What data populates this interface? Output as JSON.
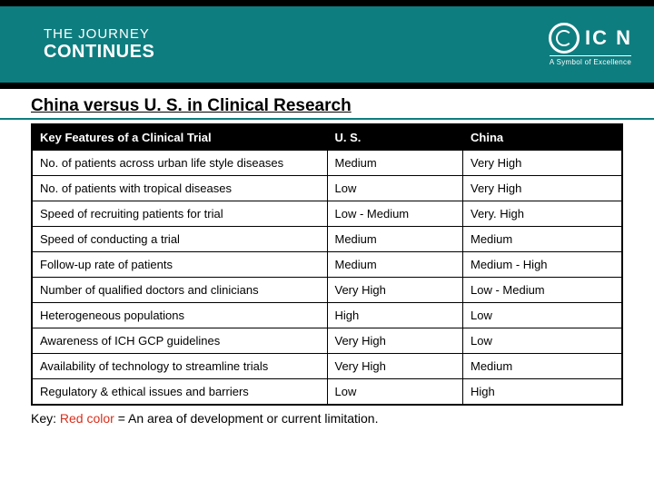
{
  "header": {
    "journey_top": "THE JOURNEY",
    "journey_bottom": "CONTINUES",
    "logo_text": "IC   N",
    "logo_sub": "A Symbol of Excellence"
  },
  "title": "China versus U. S. in Clinical Research",
  "table": {
    "columns": [
      "Key Features of a Clinical Trial",
      "U. S.",
      "China"
    ],
    "rows": [
      {
        "feature": "No. of patients across urban life style diseases",
        "us": "Medium",
        "china": "Very High"
      },
      {
        "feature": "No. of patients with tropical diseases",
        "us": "Low",
        "china": "Very High"
      },
      {
        "feature": "Speed of recruiting patients for  trial",
        "us": "Low - Medium",
        "china": "Very. High"
      },
      {
        "feature": "Speed of conducting a trial",
        "us": "Medium",
        "china": "Medium"
      },
      {
        "feature": "Follow-up rate of patients",
        "us": "Medium",
        "china": "Medium - High"
      },
      {
        "feature": "Number of qualified doctors and clinicians",
        "us": "Very High",
        "china": "Low - Medium"
      },
      {
        "feature": "Heterogeneous populations",
        "us": "High",
        "china": "Low"
      },
      {
        "feature": "Awareness of ICH GCP guidelines",
        "us": "Very High",
        "china": "Low"
      },
      {
        "feature": "Availability of technology to streamline trials",
        "us": "Very High",
        "china": "Medium"
      },
      {
        "feature": "Regulatory & ethical issues and barriers",
        "us": "Low",
        "china": "High"
      }
    ]
  },
  "footnote": {
    "key_label": "Key:",
    "red_text": "Red color",
    "rest": " = An area of development or current limitation."
  },
  "colors": {
    "band": "#0e7d7f",
    "border_black": "#000000",
    "red": "#d92e1b",
    "white": "#ffffff"
  }
}
